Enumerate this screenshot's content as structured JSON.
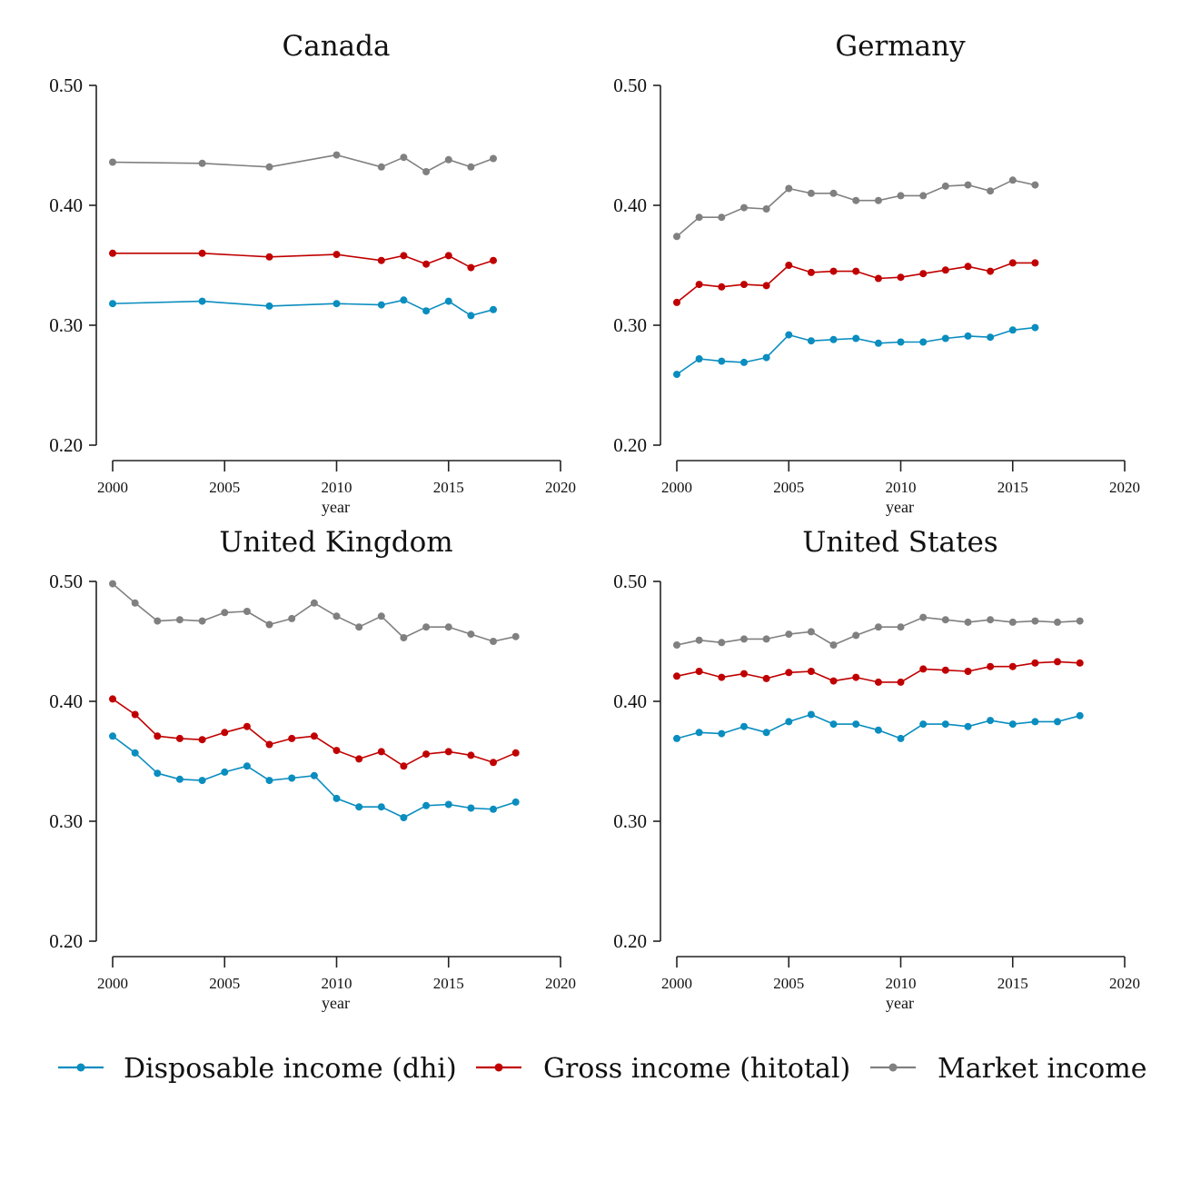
{
  "chart_data": {
    "type": "line",
    "layout": "2x2 small multiples",
    "series_meta": [
      {
        "key": "dhi",
        "name": "Disposable income (dhi)",
        "color": "#0a8dbf"
      },
      {
        "key": "hitotal",
        "name": "Gross income (hitotal)",
        "color": "#c00000"
      },
      {
        "key": "market",
        "name": "Market income",
        "color": "#808080"
      }
    ],
    "legend": {
      "position": "bottom",
      "items": [
        "Disposable income (dhi)",
        "Gross income (hitotal)",
        "Market income"
      ]
    },
    "panels": [
      {
        "title": "Canada",
        "xlabel": "year",
        "ylabel": "",
        "xlim": [
          2000,
          2020
        ],
        "ylim": [
          0.2,
          0.5
        ],
        "xticks": [
          "2000",
          "2005",
          "2010",
          "2015",
          "2020"
        ],
        "yticks": [
          "0.20",
          "0.30",
          "0.40",
          "0.50"
        ],
        "x": [
          2000,
          2004,
          2007,
          2010,
          2012,
          2013,
          2014,
          2015,
          2016,
          2017
        ],
        "series": [
          {
            "name": "Disposable income (dhi)",
            "values": [
              0.318,
              0.32,
              0.316,
              0.318,
              0.317,
              0.321,
              0.312,
              0.32,
              0.308,
              0.313
            ]
          },
          {
            "name": "Gross income (hitotal)",
            "values": [
              0.36,
              0.36,
              0.357,
              0.359,
              0.354,
              0.358,
              0.351,
              0.358,
              0.348,
              0.354
            ]
          },
          {
            "name": "Market income",
            "values": [
              0.436,
              0.435,
              0.432,
              0.442,
              0.432,
              0.44,
              0.428,
              0.438,
              0.432,
              0.439
            ]
          }
        ]
      },
      {
        "title": "Germany",
        "xlabel": "year",
        "ylabel": "",
        "xlim": [
          2000,
          2020
        ],
        "ylim": [
          0.2,
          0.5
        ],
        "xticks": [
          "2000",
          "2005",
          "2010",
          "2015",
          "2020"
        ],
        "yticks": [
          "0.20",
          "0.30",
          "0.40",
          "0.50"
        ],
        "x": [
          2000,
          2001,
          2002,
          2003,
          2004,
          2005,
          2006,
          2007,
          2008,
          2009,
          2010,
          2011,
          2012,
          2013,
          2014,
          2015,
          2016
        ],
        "series": [
          {
            "name": "Disposable income (dhi)",
            "values": [
              0.259,
              0.272,
              0.27,
              0.269,
              0.273,
              0.292,
              0.287,
              0.288,
              0.289,
              0.285,
              0.286,
              0.286,
              0.289,
              0.291,
              0.29,
              0.296,
              0.298
            ]
          },
          {
            "name": "Gross income (hitotal)",
            "values": [
              0.319,
              0.334,
              0.332,
              0.334,
              0.333,
              0.35,
              0.344,
              0.345,
              0.345,
              0.339,
              0.34,
              0.343,
              0.346,
              0.349,
              0.345,
              0.352,
              0.352
            ]
          },
          {
            "name": "Market income",
            "values": [
              0.374,
              0.39,
              0.39,
              0.398,
              0.397,
              0.414,
              0.41,
              0.41,
              0.404,
              0.404,
              0.408,
              0.408,
              0.416,
              0.417,
              0.412,
              0.421,
              0.417
            ]
          }
        ]
      },
      {
        "title": "United Kingdom",
        "xlabel": "year",
        "ylabel": "",
        "xlim": [
          2000,
          2020
        ],
        "ylim": [
          0.2,
          0.5
        ],
        "xticks": [
          "2000",
          "2005",
          "2010",
          "2015",
          "2020"
        ],
        "yticks": [
          "0.20",
          "0.30",
          "0.40",
          "0.50"
        ],
        "x": [
          2000,
          2001,
          2002,
          2003,
          2004,
          2005,
          2006,
          2007,
          2008,
          2009,
          2010,
          2011,
          2012,
          2013,
          2014,
          2015,
          2016,
          2017,
          2018
        ],
        "series": [
          {
            "name": "Disposable income (dhi)",
            "values": [
              0.371,
              0.357,
              0.34,
              0.335,
              0.334,
              0.341,
              0.346,
              0.334,
              0.336,
              0.338,
              0.319,
              0.312,
              0.312,
              0.303,
              0.313,
              0.314,
              0.311,
              0.31,
              0.316
            ]
          },
          {
            "name": "Gross income (hitotal)",
            "values": [
              0.402,
              0.389,
              0.371,
              0.369,
              0.368,
              0.374,
              0.379,
              0.364,
              0.369,
              0.371,
              0.359,
              0.352,
              0.358,
              0.346,
              0.356,
              0.358,
              0.355,
              0.349,
              0.357
            ]
          },
          {
            "name": "Market income",
            "values": [
              0.498,
              0.482,
              0.467,
              0.468,
              0.467,
              0.474,
              0.475,
              0.464,
              0.469,
              0.482,
              0.471,
              0.462,
              0.471,
              0.453,
              0.462,
              0.462,
              0.456,
              0.45,
              0.454
            ]
          }
        ]
      },
      {
        "title": "United States",
        "xlabel": "year",
        "ylabel": "",
        "xlim": [
          2000,
          2020
        ],
        "ylim": [
          0.2,
          0.5
        ],
        "xticks": [
          "2000",
          "2005",
          "2010",
          "2015",
          "2020"
        ],
        "yticks": [
          "0.20",
          "0.30",
          "0.40",
          "0.50"
        ],
        "x": [
          2000,
          2001,
          2002,
          2003,
          2004,
          2005,
          2006,
          2007,
          2008,
          2009,
          2010,
          2011,
          2012,
          2013,
          2014,
          2015,
          2016,
          2017,
          2018
        ],
        "series": [
          {
            "name": "Disposable income (dhi)",
            "values": [
              0.369,
              0.374,
              0.373,
              0.379,
              0.374,
              0.383,
              0.389,
              0.381,
              0.381,
              0.376,
              0.369,
              0.381,
              0.381,
              0.379,
              0.384,
              0.381,
              0.383,
              0.383,
              0.388
            ]
          },
          {
            "name": "Gross income (hitotal)",
            "values": [
              0.421,
              0.425,
              0.42,
              0.423,
              0.419,
              0.424,
              0.425,
              0.417,
              0.42,
              0.416,
              0.416,
              0.427,
              0.426,
              0.425,
              0.429,
              0.429,
              0.432,
              0.433,
              0.432
            ]
          },
          {
            "name": "Market income",
            "values": [
              0.447,
              0.451,
              0.449,
              0.452,
              0.452,
              0.456,
              0.458,
              0.447,
              0.455,
              0.462,
              0.462,
              0.47,
              0.468,
              0.466,
              0.468,
              0.466,
              0.467,
              0.466,
              0.467
            ]
          }
        ]
      }
    ]
  }
}
